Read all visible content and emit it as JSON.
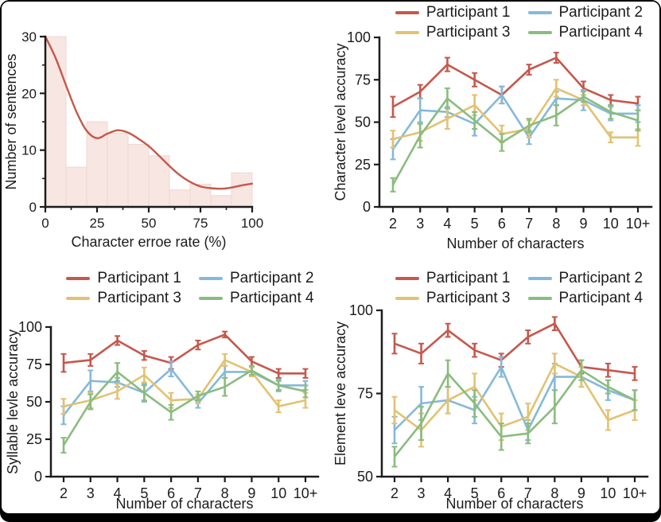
{
  "palette": {
    "participant1": "#c5584c",
    "participant2": "#85b9da",
    "participant3": "#e2c271",
    "participant4": "#8abc7e",
    "hist_fill": "#f7e6e2",
    "hist_edge": "#efd7d2",
    "axis": "#1c1c1c",
    "frame": "#000000",
    "background": "#ffffff"
  },
  "legend_labels": [
    "Participant 1",
    "Participant 2",
    "Participant 3",
    "Participant 4"
  ],
  "chart_data": [
    {
      "id": "character-error-rate-histogram",
      "type": "bar",
      "title": "",
      "xlabel": "Character erroe rate (%)",
      "ylabel": "Number of sentences",
      "xlim": [
        0,
        100
      ],
      "ylim": [
        0,
        30
      ],
      "xticks": [
        0,
        25,
        50,
        75,
        100
      ],
      "yticks": [
        0,
        10,
        20,
        30
      ],
      "x_minor_step": 12.5,
      "y_minor_step": 5,
      "bin_width": 10,
      "bin_starts": [
        0,
        10,
        20,
        30,
        40,
        50,
        60,
        70,
        80,
        90
      ],
      "values": [
        30,
        7,
        15,
        13,
        11,
        9,
        3,
        4,
        2,
        6
      ],
      "density_curve": {
        "x": [
          0,
          5,
          10,
          15,
          20,
          25,
          30,
          35,
          40,
          45,
          50,
          55,
          60,
          65,
          70,
          75,
          80,
          85,
          90,
          95,
          100
        ],
        "y": [
          30,
          26.2,
          21.4,
          16.8,
          13.4,
          12.1,
          12.9,
          13.5,
          13.1,
          12,
          10.7,
          9,
          7.2,
          5.6,
          4.4,
          3.6,
          3.3,
          3.2,
          3.4,
          3.8,
          4.1
        ]
      },
      "grid": false,
      "legend_position": "none"
    },
    {
      "id": "character-level-accuracy",
      "type": "line",
      "title": "",
      "xlabel": "Number of characters",
      "ylabel": "Character level accuracy",
      "categories": [
        "2",
        "3",
        "4",
        "5",
        "6",
        "7",
        "8",
        "9",
        "10",
        "10+"
      ],
      "ylim": [
        0,
        100
      ],
      "yticks": [
        0,
        25,
        50,
        75,
        100
      ],
      "grid": false,
      "legend_position": "top",
      "series": [
        {
          "name": "Participant 1",
          "color": "#c5584c",
          "values": [
            59,
            68,
            84,
            75,
            66,
            81,
            88,
            70,
            63,
            61
          ],
          "errors": [
            6,
            4,
            4,
            4,
            5,
            3,
            3,
            4,
            3,
            4
          ]
        },
        {
          "name": "Participant 2",
          "color": "#85b9da",
          "values": [
            34,
            57,
            56,
            49,
            66,
            41,
            64,
            63,
            55,
            55
          ],
          "errors": [
            6,
            7,
            3,
            7,
            5,
            4,
            4,
            6,
            4,
            5
          ]
        },
        {
          "name": "Participant 3",
          "color": "#e2c271",
          "values": [
            40,
            44,
            52,
            60,
            43,
            46,
            70,
            63,
            41,
            41
          ],
          "errors": [
            5,
            5,
            6,
            6,
            5,
            5,
            5,
            3,
            3,
            5
          ]
        },
        {
          "name": "Participant 4",
          "color": "#8abc7e",
          "values": [
            13,
            42,
            64,
            51,
            38,
            48,
            54,
            65,
            56,
            51
          ],
          "errors": [
            4,
            7,
            6,
            5,
            5,
            4,
            6,
            3,
            4,
            6
          ]
        }
      ]
    },
    {
      "id": "syllable-level-accuracy",
      "type": "line",
      "title": "",
      "xlabel": "Number of characters",
      "ylabel": "Syllable levle accuracy",
      "categories": [
        "2",
        "3",
        "4",
        "5",
        "6",
        "7",
        "8",
        "9",
        "10",
        "10+"
      ],
      "ylim": [
        0,
        100
      ],
      "yticks": [
        0,
        25,
        50,
        75,
        100
      ],
      "grid": false,
      "legend_position": "top",
      "series": [
        {
          "name": "Participant 1",
          "color": "#c5584c",
          "values": [
            76,
            78,
            91,
            81,
            76,
            88,
            95,
            77,
            69,
            69
          ],
          "errors": [
            6,
            4,
            3,
            3,
            4,
            3,
            2,
            3,
            3,
            3
          ]
        },
        {
          "name": "Participant 2",
          "color": "#85b9da",
          "values": [
            41,
            64,
            63,
            56,
            72,
            49,
            70,
            70,
            61,
            61
          ],
          "errors": [
            6,
            7,
            3,
            6,
            5,
            3,
            4,
            3,
            4,
            3
          ]
        },
        {
          "name": "Participant 3",
          "color": "#e2c271",
          "values": [
            47,
            51,
            57,
            68,
            51,
            52,
            78,
            70,
            47,
            51
          ],
          "errors": [
            5,
            5,
            5,
            5,
            5,
            3,
            4,
            3,
            4,
            5
          ]
        },
        {
          "name": "Participant 4",
          "color": "#8abc7e",
          "values": [
            21,
            50,
            70,
            56,
            43,
            54,
            60,
            71,
            61,
            57
          ],
          "errors": [
            5,
            5,
            6,
            5,
            5,
            3,
            6,
            3,
            3,
            4
          ]
        }
      ]
    },
    {
      "id": "element-level-accuracy",
      "type": "line",
      "title": "",
      "xlabel": "Number of characters",
      "ylabel": "Element leve accuracy",
      "categories": [
        "2",
        "3",
        "4",
        "5",
        "6",
        "7",
        "8",
        "9",
        "10",
        "10+"
      ],
      "ylim": [
        50,
        100
      ],
      "yticks": [
        50,
        75,
        100
      ],
      "grid": false,
      "legend_position": "top",
      "series": [
        {
          "name": "Participant 1",
          "color": "#c5584c",
          "values": [
            90,
            87,
            94,
            88,
            85,
            92,
            96,
            83,
            82,
            81
          ],
          "errors": [
            3,
            3,
            2,
            2,
            2,
            2,
            2,
            2,
            2,
            2
          ]
        },
        {
          "name": "Participant 2",
          "color": "#85b9da",
          "values": [
            64,
            72,
            73,
            70,
            83,
            64,
            80,
            80,
            76,
            73
          ],
          "errors": [
            4,
            5,
            4,
            4,
            3,
            3,
            4,
            3,
            3,
            3
          ]
        },
        {
          "name": "Participant 3",
          "color": "#e2c271",
          "values": [
            70,
            64,
            73,
            77,
            65,
            68,
            84,
            80,
            67,
            70
          ],
          "errors": [
            4,
            5,
            4,
            4,
            4,
            4,
            3,
            3,
            3,
            3
          ]
        },
        {
          "name": "Participant 4",
          "color": "#8abc7e",
          "values": [
            56,
            66,
            81,
            72,
            62,
            63,
            71,
            82,
            77,
            73
          ],
          "errors": [
            3,
            5,
            4,
            4,
            4,
            3,
            5,
            3,
            2,
            3
          ]
        }
      ]
    }
  ]
}
